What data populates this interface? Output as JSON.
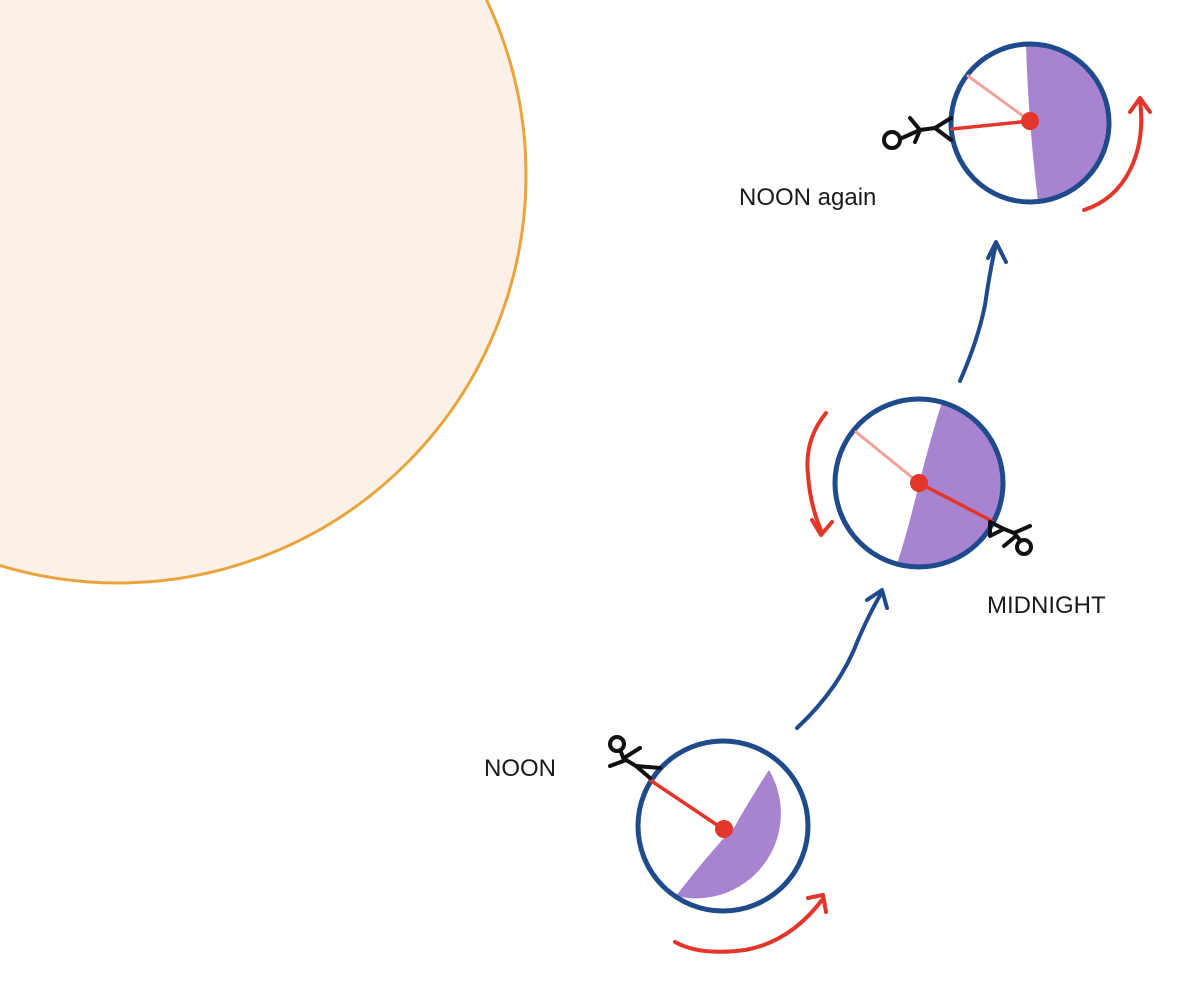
{
  "labels": {
    "noon": "NOON",
    "midnight": "MIDNIGHT",
    "noon_again": "NOON again"
  },
  "colors": {
    "sun_fill": "#fbf1e8",
    "sun_stroke": "#e9a43c",
    "planet_outline": "#1f4a8c",
    "night_side": "#a884d0",
    "orbit_arrow": "#1f4a8c",
    "spin_arrow": "#e4352a",
    "observer_line": "#e4352a",
    "previous_observer_line": "#f0a29c"
  },
  "icons": {
    "observer": "stick-figure",
    "orbit_direction": "arrow",
    "spin_direction": "curved-arrow"
  }
}
